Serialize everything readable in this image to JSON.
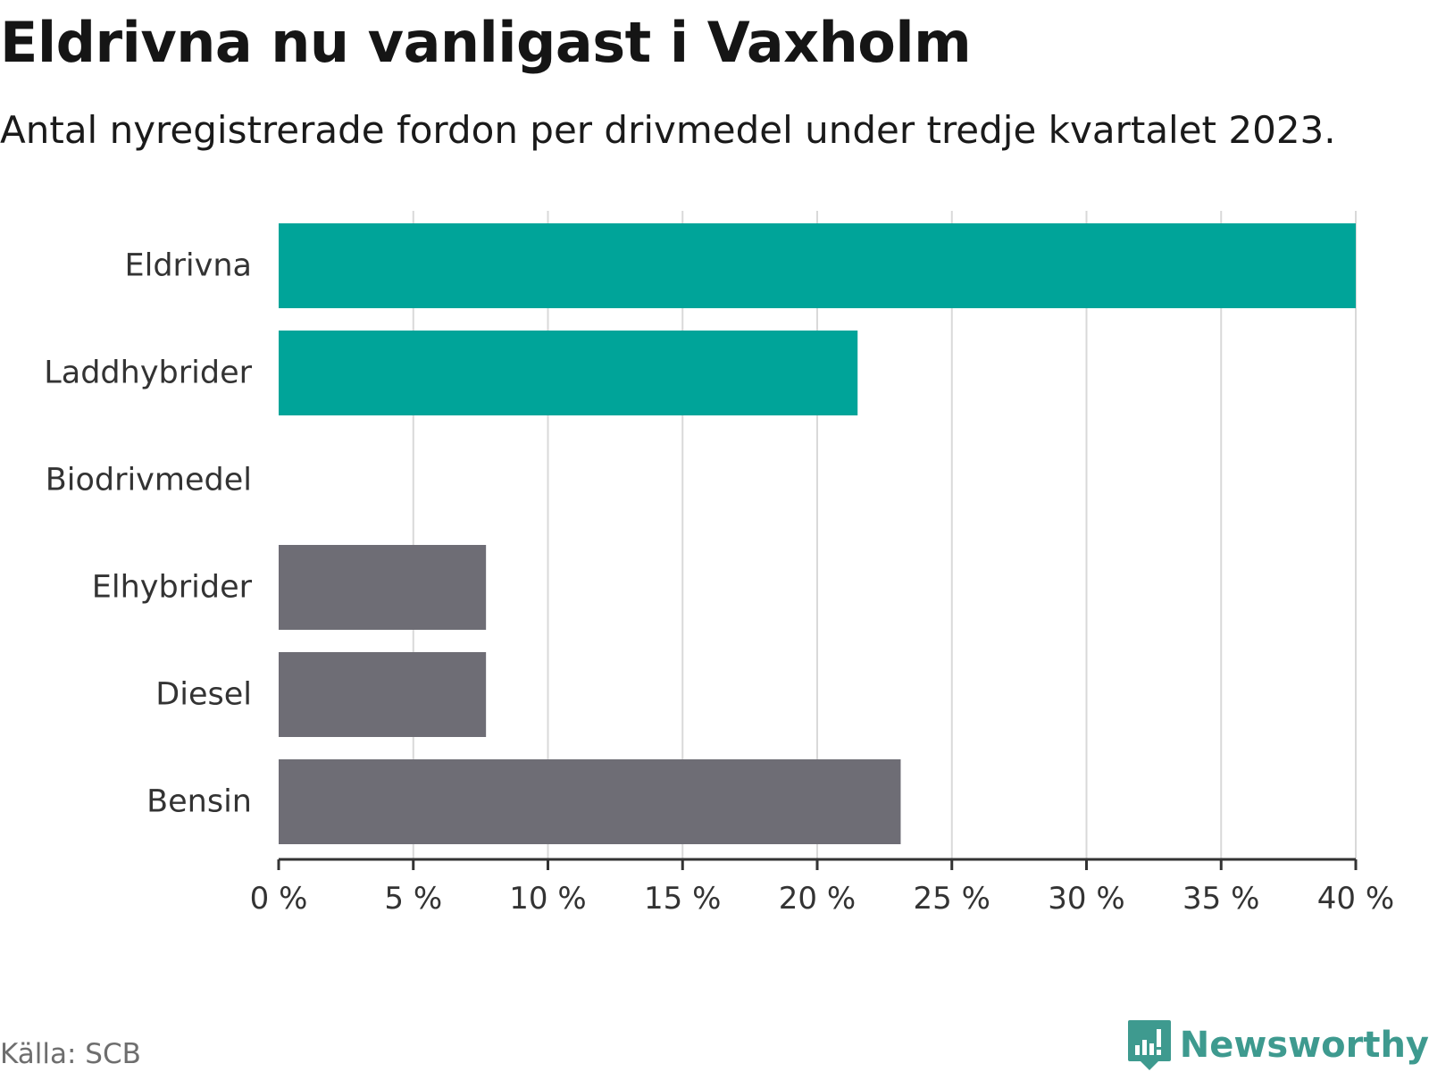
{
  "header": {
    "title": "Eldrivna nu vanligast i Vaxholm",
    "subtitle": "Antal nyregistrerade fordon per drivmedel under tredje kvartalet 2023."
  },
  "footer": {
    "source": "Källa: SCB",
    "brand": "Newsworthy",
    "brand_icon": "bar-chart-logo-icon"
  },
  "colors": {
    "highlight": "#00a499",
    "neutral": "#6e6d75",
    "grid": "#d9d9d9",
    "axis": "#333333",
    "label": "#333333",
    "brand": "#3e9a8f"
  },
  "chart_data": {
    "type": "bar",
    "orientation": "horizontal",
    "title": "Eldrivna nu vanligast i Vaxholm",
    "subtitle": "Antal nyregistrerade fordon per drivmedel under tredje kvartalet 2023.",
    "xlabel": "",
    "ylabel": "",
    "xlim": [
      0,
      40
    ],
    "x_ticks": [
      0,
      5,
      10,
      15,
      20,
      25,
      30,
      35,
      40
    ],
    "x_tick_labels": [
      "0 %",
      "5 %",
      "10 %",
      "15 %",
      "20 %",
      "25 %",
      "30 %",
      "35 %",
      "40 %"
    ],
    "grid": true,
    "categories": [
      "Eldrivna",
      "Laddhybrider",
      "Biodrivmedel",
      "Elhybrider",
      "Diesel",
      "Bensin"
    ],
    "values": [
      40.0,
      21.5,
      0,
      7.7,
      7.7,
      23.1
    ],
    "color_groups": [
      "highlight",
      "highlight",
      "highlight",
      "neutral",
      "neutral",
      "neutral"
    ]
  }
}
